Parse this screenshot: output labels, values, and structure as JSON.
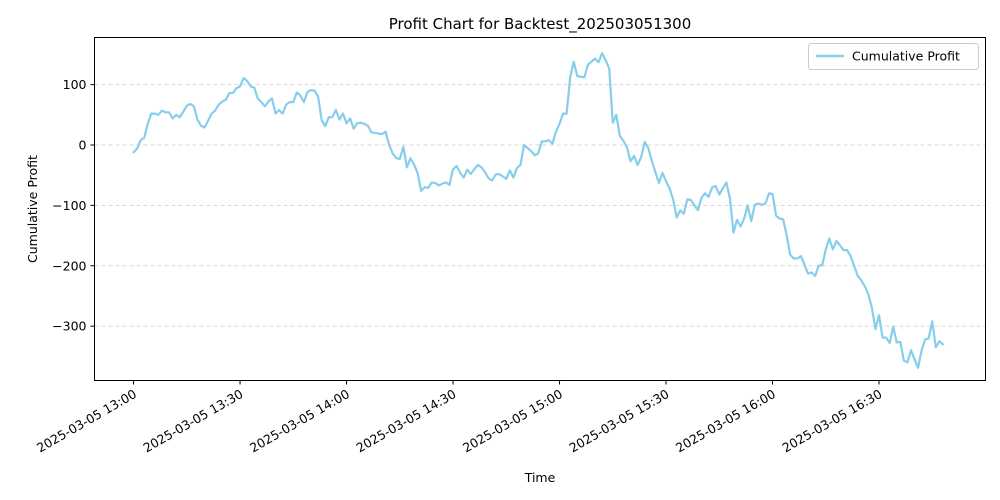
{
  "chart_data": {
    "type": "line",
    "title": "Profit Chart for Backtest_202503051300",
    "xlabel": "Time",
    "ylabel": "Cumulative Profit",
    "x_start": "2025-03-05 13:00",
    "x_step_minutes": 1,
    "xlim": [
      "2025-03-05 12:49",
      "2025-03-05 17:00"
    ],
    "ylim": [
      -390,
      178
    ],
    "x_ticks": [
      {
        "minutes": 0,
        "label": "2025-03-05 13:00"
      },
      {
        "minutes": 30,
        "label": "2025-03-05 13:30"
      },
      {
        "minutes": 60,
        "label": "2025-03-05 14:00"
      },
      {
        "minutes": 90,
        "label": "2025-03-05 14:30"
      },
      {
        "minutes": 120,
        "label": "2025-03-05 15:00"
      },
      {
        "minutes": 150,
        "label": "2025-03-05 15:30"
      },
      {
        "minutes": 180,
        "label": "2025-03-05 16:00"
      },
      {
        "minutes": 210,
        "label": "2025-03-05 16:30"
      }
    ],
    "y_ticks": [
      {
        "value": 100,
        "label": "100"
      },
      {
        "value": 0,
        "label": "0"
      },
      {
        "value": -100,
        "label": "−100"
      },
      {
        "value": -200,
        "label": "−200"
      },
      {
        "value": -300,
        "label": "−300"
      }
    ],
    "grid": "horizontal-dashed",
    "legend_position": "top-right",
    "series": [
      {
        "name": "Cumulative Profit",
        "color": "#87ceeb",
        "values": [
          -12,
          -6,
          8,
          12,
          35,
          52,
          52,
          50,
          57,
          54,
          54,
          44,
          50,
          46,
          55,
          65,
          68,
          64,
          42,
          32,
          29,
          40,
          52,
          57,
          67,
          72,
          75,
          86,
          86,
          94,
          97,
          111,
          106,
          97,
          95,
          77,
          71,
          64,
          72,
          77,
          52,
          58,
          52,
          67,
          71,
          71,
          87,
          82,
          71,
          88,
          91,
          90,
          80,
          41,
          31,
          46,
          46,
          58,
          42,
          52,
          36,
          44,
          27,
          36,
          37,
          35,
          32,
          21,
          20,
          19,
          18,
          22,
          0,
          -14,
          -22,
          -23,
          -3,
          -37,
          -22,
          -32,
          -46,
          -76,
          -70,
          -71,
          -62,
          -63,
          -67,
          -64,
          -62,
          -66,
          -40,
          -35,
          -46,
          -54,
          -41,
          -48,
          -40,
          -33,
          -37,
          -45,
          -55,
          -59,
          -49,
          -48,
          -52,
          -56,
          -42,
          -54,
          -38,
          -33,
          0,
          -5,
          -10,
          -17,
          -14,
          6,
          6,
          8,
          2,
          22,
          35,
          52,
          52,
          112,
          138,
          114,
          113,
          112,
          133,
          138,
          143,
          137,
          152,
          140,
          127,
          37,
          50,
          15,
          7,
          -4,
          -27,
          -18,
          -33,
          -20,
          5,
          -5,
          -26,
          -45,
          -63,
          -46,
          -60,
          -72,
          -90,
          -120,
          -108,
          -114,
          -90,
          -91,
          -100,
          -108,
          -87,
          -80,
          -86,
          -70,
          -68,
          -82,
          -72,
          -62,
          -88,
          -145,
          -124,
          -135,
          -122,
          -100,
          -126,
          -99,
          -97,
          -99,
          -97,
          -80,
          -81,
          -117,
          -122,
          -123,
          -150,
          -182,
          -188,
          -188,
          -184,
          -198,
          -213,
          -211,
          -217,
          -200,
          -199,
          -173,
          -155,
          -173,
          -159,
          -166,
          -174,
          -174,
          -184,
          -200,
          -217,
          -224,
          -234,
          -247,
          -270,
          -305,
          -282,
          -319,
          -319,
          -328,
          -301,
          -327,
          -326,
          -357,
          -360,
          -340,
          -355,
          -369,
          -340,
          -322,
          -320,
          -292,
          -335,
          -325,
          -330
        ]
      }
    ]
  }
}
